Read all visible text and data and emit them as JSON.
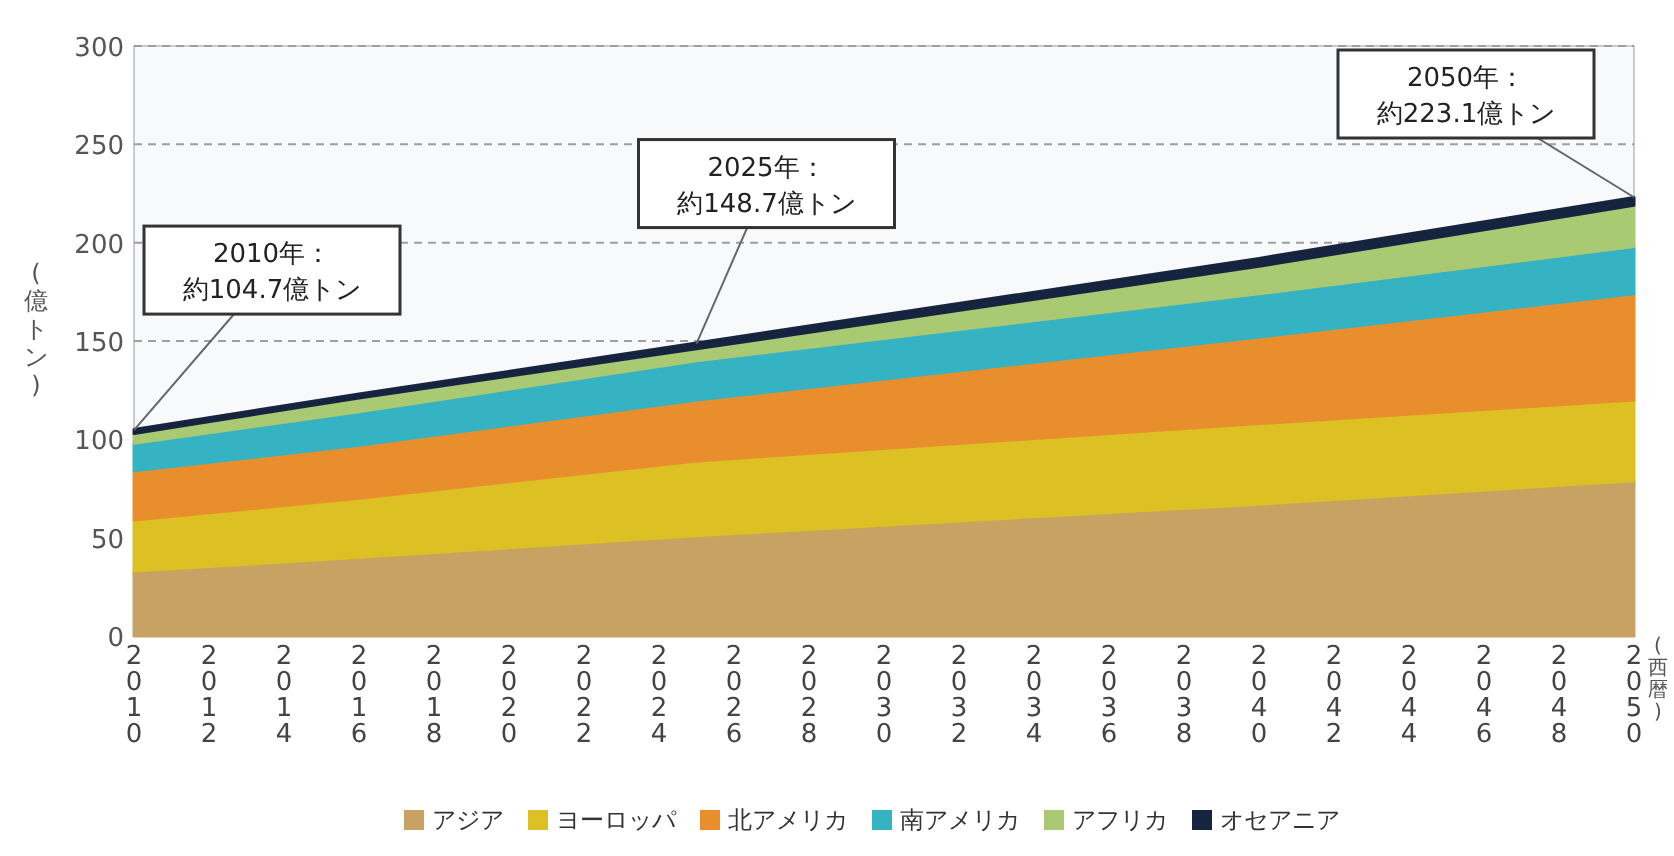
{
  "chart_data": {
    "type": "area",
    "stacked": true,
    "ylabel": "(億トン)",
    "xlabel": "(西暦)",
    "x": [
      2010,
      2016,
      2025,
      2040,
      2050
    ],
    "xlim": [
      2010,
      2050
    ],
    "xticks": [
      2010,
      2012,
      2014,
      2016,
      2018,
      2020,
      2022,
      2024,
      2026,
      2028,
      2030,
      2032,
      2034,
      2036,
      2038,
      2040,
      2042,
      2044,
      2046,
      2048,
      2050
    ],
    "ylim": [
      0,
      300
    ],
    "yticks": [
      0,
      50,
      100,
      150,
      200,
      250,
      300
    ],
    "grid": "y",
    "legend": "bottom",
    "series": [
      {
        "name": "アジア",
        "color": "#c8a262",
        "values": [
          33,
          40,
          51,
          67,
          79
        ]
      },
      {
        "name": "ヨーロッパ",
        "color": "#dcc024",
        "values": [
          26,
          30,
          38,
          41,
          41
        ]
      },
      {
        "name": "北アメリカ",
        "color": "#e98e2c",
        "values": [
          25,
          27,
          31,
          44,
          54
        ]
      },
      {
        "name": "南アメリカ",
        "color": "#35b3c2",
        "values": [
          14,
          17,
          20,
          22,
          24
        ]
      },
      {
        "name": "アフリカ",
        "color": "#a9c973",
        "values": [
          5,
          7,
          6,
          14,
          21
        ]
      },
      {
        "name": "オセアニア",
        "color": "#16243f",
        "values": [
          2,
          2,
          3,
          4,
          4
        ]
      }
    ],
    "annotations": [
      {
        "text": "2010年：約104.7億トン",
        "x": 2010,
        "y": 104.7
      },
      {
        "text": "2025年：約148.7億トン",
        "x": 2025,
        "y": 148.7
      },
      {
        "text": "2050年：約223.1億トン",
        "x": 2050,
        "y": 223.1
      }
    ]
  }
}
